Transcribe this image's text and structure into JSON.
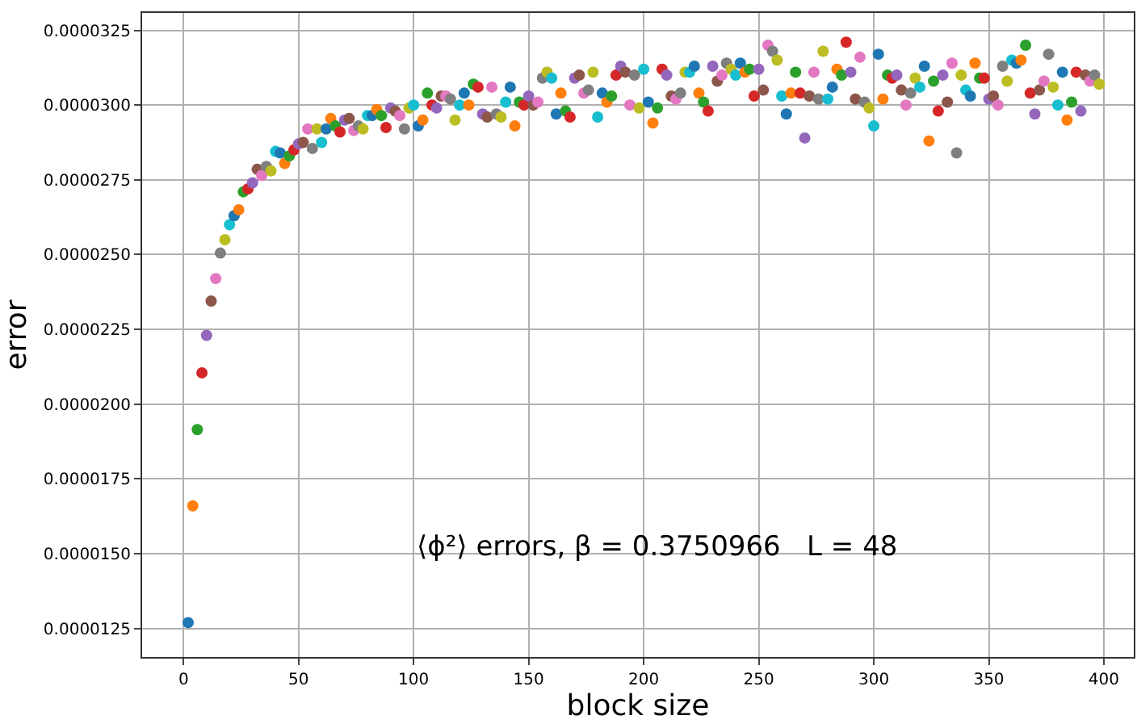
{
  "chart_data": {
    "type": "scatter",
    "xlabel": "block size",
    "ylabel": "error",
    "annotations": [
      "⟨ϕ²⟩ errors, β = 0.3750966   L = 48"
    ],
    "x": [
      2,
      4,
      6,
      8,
      10,
      12,
      14,
      16,
      18,
      20,
      22,
      24,
      26,
      28,
      30,
      32,
      34,
      36,
      38,
      40,
      42,
      44,
      46,
      48,
      50,
      52,
      54,
      56,
      58,
      60,
      62,
      64,
      66,
      68,
      70,
      72,
      74,
      76,
      78,
      80,
      82,
      84,
      86,
      88,
      90,
      92,
      94,
      96,
      98,
      100,
      102,
      104,
      106,
      108,
      110,
      112,
      114,
      116,
      118,
      120,
      122,
      124,
      126,
      128,
      130,
      132,
      134,
      136,
      138,
      140,
      142,
      144,
      146,
      148,
      150,
      152,
      154,
      156,
      158,
      160,
      162,
      164,
      166,
      168,
      170,
      172,
      174,
      176,
      178,
      180,
      182,
      184,
      186,
      188,
      190,
      192,
      194,
      196,
      198,
      200,
      202,
      204,
      206,
      208,
      210,
      212,
      214,
      216,
      218,
      220,
      222,
      224,
      226,
      228,
      230,
      232,
      234,
      236,
      238,
      240,
      242,
      244,
      246,
      248,
      250,
      252,
      254,
      256,
      258,
      260,
      262,
      264,
      266,
      268,
      270,
      272,
      274,
      276,
      278,
      280,
      282,
      284,
      286,
      288,
      290,
      292,
      294,
      296,
      298,
      300,
      302,
      304,
      306,
      308,
      310,
      312,
      314,
      316,
      318,
      320,
      322,
      324,
      326,
      328,
      330,
      332,
      334,
      336,
      338,
      340,
      342,
      344,
      346,
      348,
      350,
      352,
      354,
      356,
      358,
      360,
      362,
      364,
      366,
      368,
      370,
      372,
      374,
      376,
      378,
      380,
      382,
      384,
      386,
      388,
      390,
      392,
      394,
      396,
      398
    ],
    "values": [
      1.27e-05,
      1.66e-05,
      1.915e-05,
      2.105e-05,
      2.23e-05,
      2.345e-05,
      2.42e-05,
      2.505e-05,
      2.55e-05,
      2.6e-05,
      2.63e-05,
      2.65e-05,
      2.71e-05,
      2.72e-05,
      2.74e-05,
      2.785e-05,
      2.765e-05,
      2.795e-05,
      2.78e-05,
      2.845e-05,
      2.84e-05,
      2.805e-05,
      2.83e-05,
      2.85e-05,
      2.87e-05,
      2.875e-05,
      2.92e-05,
      2.855e-05,
      2.92e-05,
      2.875e-05,
      2.92e-05,
      2.955e-05,
      2.93e-05,
      2.91e-05,
      2.95e-05,
      2.955e-05,
      2.915e-05,
      2.93e-05,
      2.92e-05,
      2.965e-05,
      2.965e-05,
      2.985e-05,
      2.965e-05,
      2.925e-05,
      2.99e-05,
      2.98e-05,
      2.965e-05,
      2.92e-05,
      2.99e-05,
      3e-05,
      2.93e-05,
      2.95e-05,
      3.04e-05,
      3e-05,
      2.99e-05,
      3.03e-05,
      3.03e-05,
      3.02e-05,
      2.95e-05,
      3e-05,
      3.04e-05,
      3e-05,
      3.07e-05,
      3.06e-05,
      2.97e-05,
      2.96e-05,
      3.06e-05,
      2.97e-05,
      2.96e-05,
      3.01e-05,
      3.06e-05,
      2.93e-05,
      3.01e-05,
      3e-05,
      3.03e-05,
      3e-05,
      3.01e-05,
      3.09e-05,
      3.11e-05,
      3.09e-05,
      2.97e-05,
      3.04e-05,
      2.98e-05,
      2.96e-05,
      3.09e-05,
      3.1e-05,
      3.04e-05,
      3.05e-05,
      3.11e-05,
      2.96e-05,
      3.04e-05,
      3.01e-05,
      3.03e-05,
      3.1e-05,
      3.13e-05,
      3.11e-05,
      3e-05,
      3.1e-05,
      2.99e-05,
      3.12e-05,
      3.01e-05,
      2.94e-05,
      2.99e-05,
      3.12e-05,
      3.1e-05,
      3.03e-05,
      3.02e-05,
      3.04e-05,
      3.11e-05,
      3.11e-05,
      3.13e-05,
      3.04e-05,
      3.01e-05,
      2.98e-05,
      3.13e-05,
      3.08e-05,
      3.1e-05,
      3.14e-05,
      3.12e-05,
      3.1e-05,
      3.14e-05,
      3.11e-05,
      3.12e-05,
      3.03e-05,
      3.12e-05,
      3.05e-05,
      3.2e-05,
      3.18e-05,
      3.15e-05,
      3.03e-05,
      2.97e-05,
      3.04e-05,
      3.11e-05,
      3.04e-05,
      2.89e-05,
      3.03e-05,
      3.11e-05,
      3.02e-05,
      3.18e-05,
      3.02e-05,
      3.06e-05,
      3.12e-05,
      3.1e-05,
      3.21e-05,
      3.11e-05,
      3.02e-05,
      3.16e-05,
      3.01e-05,
      2.99e-05,
      2.93e-05,
      3.17e-05,
      3.02e-05,
      3.1e-05,
      3.09e-05,
      3.1e-05,
      3.05e-05,
      3e-05,
      3.04e-05,
      3.09e-05,
      3.06e-05,
      3.13e-05,
      2.88e-05,
      3.08e-05,
      2.98e-05,
      3.1e-05,
      3.01e-05,
      3.14e-05,
      2.84e-05,
      3.1e-05,
      3.05e-05,
      3.03e-05,
      3.14e-05,
      3.09e-05,
      3.09e-05,
      3.02e-05,
      3.03e-05,
      3e-05,
      3.13e-05,
      3.08e-05,
      3.15e-05,
      3.14e-05,
      3.15e-05,
      3.2e-05,
      3.04e-05,
      2.97e-05,
      3.05e-05,
      3.08e-05,
      3.17e-05,
      3.06e-05,
      3e-05,
      3.11e-05,
      2.95e-05,
      3.01e-05,
      3.11e-05,
      2.98e-05,
      3.1e-05,
      3.08e-05,
      3.1e-05,
      3.07e-05
    ],
    "colors": [
      "#1f77b4",
      "#ff7f0e",
      "#2ca02c",
      "#d62728",
      "#9467bd",
      "#8c564b",
      "#e377c2",
      "#7f7f7f",
      "#bcbd22",
      "#17becf",
      "#1f77b4",
      "#ff7f0e",
      "#2ca02c",
      "#d62728",
      "#9467bd",
      "#8c564b",
      "#e377c2",
      "#7f7f7f",
      "#bcbd22",
      "#17becf",
      "#1f77b4",
      "#ff7f0e",
      "#2ca02c",
      "#d62728",
      "#9467bd",
      "#8c564b",
      "#e377c2",
      "#7f7f7f",
      "#bcbd22",
      "#17becf",
      "#1f77b4",
      "#ff7f0e",
      "#2ca02c",
      "#d62728",
      "#9467bd",
      "#8c564b",
      "#e377c2",
      "#7f7f7f",
      "#bcbd22",
      "#17becf",
      "#1f77b4",
      "#ff7f0e",
      "#2ca02c",
      "#d62728",
      "#9467bd",
      "#8c564b",
      "#e377c2",
      "#7f7f7f",
      "#bcbd22",
      "#17becf",
      "#1f77b4",
      "#ff7f0e",
      "#2ca02c",
      "#d62728",
      "#9467bd",
      "#8c564b",
      "#e377c2",
      "#7f7f7f",
      "#bcbd22",
      "#17becf",
      "#1f77b4",
      "#ff7f0e",
      "#2ca02c",
      "#d62728",
      "#9467bd",
      "#8c564b",
      "#e377c2",
      "#7f7f7f",
      "#bcbd22",
      "#17becf",
      "#1f77b4",
      "#ff7f0e",
      "#2ca02c",
      "#d62728",
      "#9467bd",
      "#8c564b",
      "#e377c2",
      "#7f7f7f",
      "#bcbd22",
      "#17becf",
      "#1f77b4",
      "#ff7f0e",
      "#2ca02c",
      "#d62728",
      "#9467bd",
      "#8c564b",
      "#e377c2",
      "#7f7f7f",
      "#bcbd22",
      "#17becf",
      "#1f77b4",
      "#ff7f0e",
      "#2ca02c",
      "#d62728",
      "#9467bd",
      "#8c564b",
      "#e377c2",
      "#7f7f7f",
      "#bcbd22",
      "#17becf",
      "#1f77b4",
      "#ff7f0e",
      "#2ca02c",
      "#d62728",
      "#9467bd",
      "#8c564b",
      "#e377c2",
      "#7f7f7f",
      "#bcbd22",
      "#17becf",
      "#1f77b4",
      "#ff7f0e",
      "#2ca02c",
      "#d62728",
      "#9467bd",
      "#8c564b",
      "#e377c2",
      "#7f7f7f",
      "#bcbd22",
      "#17becf",
      "#1f77b4",
      "#ff7f0e",
      "#2ca02c",
      "#d62728",
      "#9467bd",
      "#8c564b",
      "#e377c2",
      "#7f7f7f",
      "#bcbd22",
      "#17becf",
      "#1f77b4",
      "#ff7f0e",
      "#2ca02c",
      "#d62728",
      "#9467bd",
      "#8c564b",
      "#e377c2",
      "#7f7f7f",
      "#bcbd22",
      "#17becf",
      "#1f77b4",
      "#ff7f0e",
      "#2ca02c",
      "#d62728",
      "#9467bd",
      "#8c564b",
      "#e377c2",
      "#7f7f7f",
      "#bcbd22",
      "#17becf",
      "#1f77b4",
      "#ff7f0e",
      "#2ca02c",
      "#d62728",
      "#9467bd",
      "#8c564b",
      "#e377c2",
      "#7f7f7f",
      "#bcbd22",
      "#17becf",
      "#1f77b4",
      "#ff7f0e",
      "#2ca02c",
      "#d62728",
      "#9467bd",
      "#8c564b",
      "#e377c2",
      "#7f7f7f",
      "#bcbd22",
      "#17becf",
      "#1f77b4",
      "#ff7f0e",
      "#2ca02c",
      "#d62728",
      "#9467bd",
      "#8c564b",
      "#e377c2",
      "#7f7f7f",
      "#bcbd22",
      "#17becf",
      "#1f77b4",
      "#ff7f0e",
      "#2ca02c",
      "#d62728",
      "#9467bd",
      "#8c564b",
      "#e377c2",
      "#7f7f7f",
      "#bcbd22",
      "#17becf",
      "#1f77b4",
      "#ff7f0e",
      "#2ca02c",
      "#d62728",
      "#9467bd",
      "#8c564b",
      "#e377c2",
      "#7f7f7f",
      "#bcbd22"
    ],
    "xlim": [
      -18,
      413
    ],
    "xticks": [
      0,
      50,
      100,
      150,
      200,
      250,
      300,
      350,
      400
    ],
    "ylim": [
      1.155e-05,
      3.308e-05
    ],
    "yticks": [
      {
        "value": 1.25e-05,
        "label": "0.0000125"
      },
      {
        "value": 1.5e-05,
        "label": "0.0000150"
      },
      {
        "value": 1.75e-05,
        "label": "0.0000175"
      },
      {
        "value": 2e-05,
        "label": "0.0000200"
      },
      {
        "value": 2.25e-05,
        "label": "0.0000225"
      },
      {
        "value": 2.5e-05,
        "label": "0.0000250"
      },
      {
        "value": 2.75e-05,
        "label": "0.0000275"
      },
      {
        "value": 3e-05,
        "label": "0.0000300"
      },
      {
        "value": 3.25e-05,
        "label": "0.0000325"
      }
    ],
    "grid": true,
    "marker": "circle"
  }
}
